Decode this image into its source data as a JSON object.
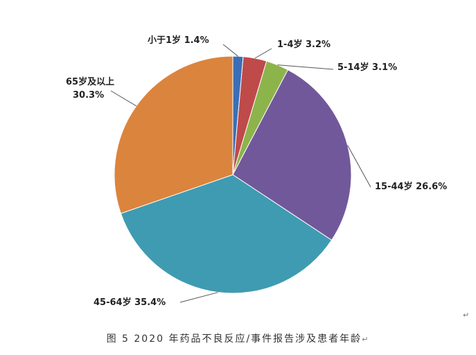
{
  "chart_data": {
    "type": "pie",
    "title": "",
    "categories": [
      "小于1岁",
      "1-4岁",
      "5-14岁",
      "15-44岁",
      "45-64岁",
      "65岁及以上"
    ],
    "values": [
      1.4,
      3.2,
      3.1,
      26.6,
      35.4,
      30.3
    ],
    "value_labels": [
      "1.4%",
      "3.2%",
      "3.1%",
      "26.6%",
      "35.4%",
      "30.3%"
    ],
    "start_angle_deg": 0,
    "direction": "clockwise",
    "colors": [
      "#3a6fb7",
      "#bf4a4a",
      "#8db44b",
      "#71589a",
      "#3f9bb1",
      "#db843d"
    ],
    "legend": "none"
  },
  "caption": "图 5   2020 年药品不良反应/事件报告涉及患者年龄",
  "caption_mark": "↵",
  "para_mark": "↵"
}
